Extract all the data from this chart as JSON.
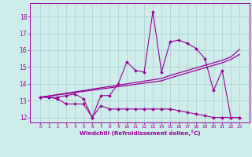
{
  "xlabel": "Windchill (Refroidissement éolien,°C)",
  "background_color": "#ceecea",
  "grid_color": "#aacfcc",
  "line_color": "#990099",
  "x_data": [
    0,
    1,
    2,
    3,
    4,
    5,
    6,
    7,
    8,
    9,
    10,
    11,
    12,
    13,
    14,
    15,
    16,
    17,
    18,
    19,
    20,
    21,
    22,
    23
  ],
  "line_main": [
    13.2,
    13.2,
    13.2,
    13.3,
    13.4,
    13.1,
    12.0,
    13.3,
    13.3,
    14.0,
    15.3,
    14.8,
    14.7,
    18.3,
    14.7,
    16.5,
    16.6,
    16.4,
    16.1,
    15.5,
    13.6,
    14.8,
    12.0,
    12.0
  ],
  "line_trend1": [
    13.2,
    13.28,
    13.36,
    13.44,
    13.52,
    13.6,
    13.68,
    13.76,
    13.84,
    13.92,
    14.0,
    14.08,
    14.16,
    14.24,
    14.32,
    14.5,
    14.65,
    14.8,
    14.95,
    15.1,
    15.25,
    15.4,
    15.6,
    16.05
  ],
  "line_trend2": [
    13.2,
    13.27,
    13.34,
    13.41,
    13.48,
    13.55,
    13.62,
    13.69,
    13.76,
    13.83,
    13.9,
    13.97,
    14.04,
    14.11,
    14.18,
    14.35,
    14.5,
    14.65,
    14.8,
    14.95,
    15.1,
    15.25,
    15.45,
    15.75
  ],
  "line_bottom": [
    13.2,
    13.2,
    13.1,
    12.8,
    12.8,
    12.8,
    12.0,
    12.7,
    12.5,
    12.5,
    12.5,
    12.5,
    12.5,
    12.5,
    12.5,
    12.5,
    12.4,
    12.3,
    12.2,
    12.1,
    12.0,
    12.0,
    12.0,
    12.0
  ],
  "ylim": [
    11.7,
    18.8
  ],
  "yticks": [
    12,
    13,
    14,
    15,
    16,
    17,
    18
  ],
  "xticks": [
    0,
    1,
    2,
    3,
    4,
    5,
    6,
    7,
    8,
    9,
    10,
    11,
    12,
    13,
    14,
    15,
    16,
    17,
    18,
    19,
    20,
    21,
    22,
    23
  ]
}
